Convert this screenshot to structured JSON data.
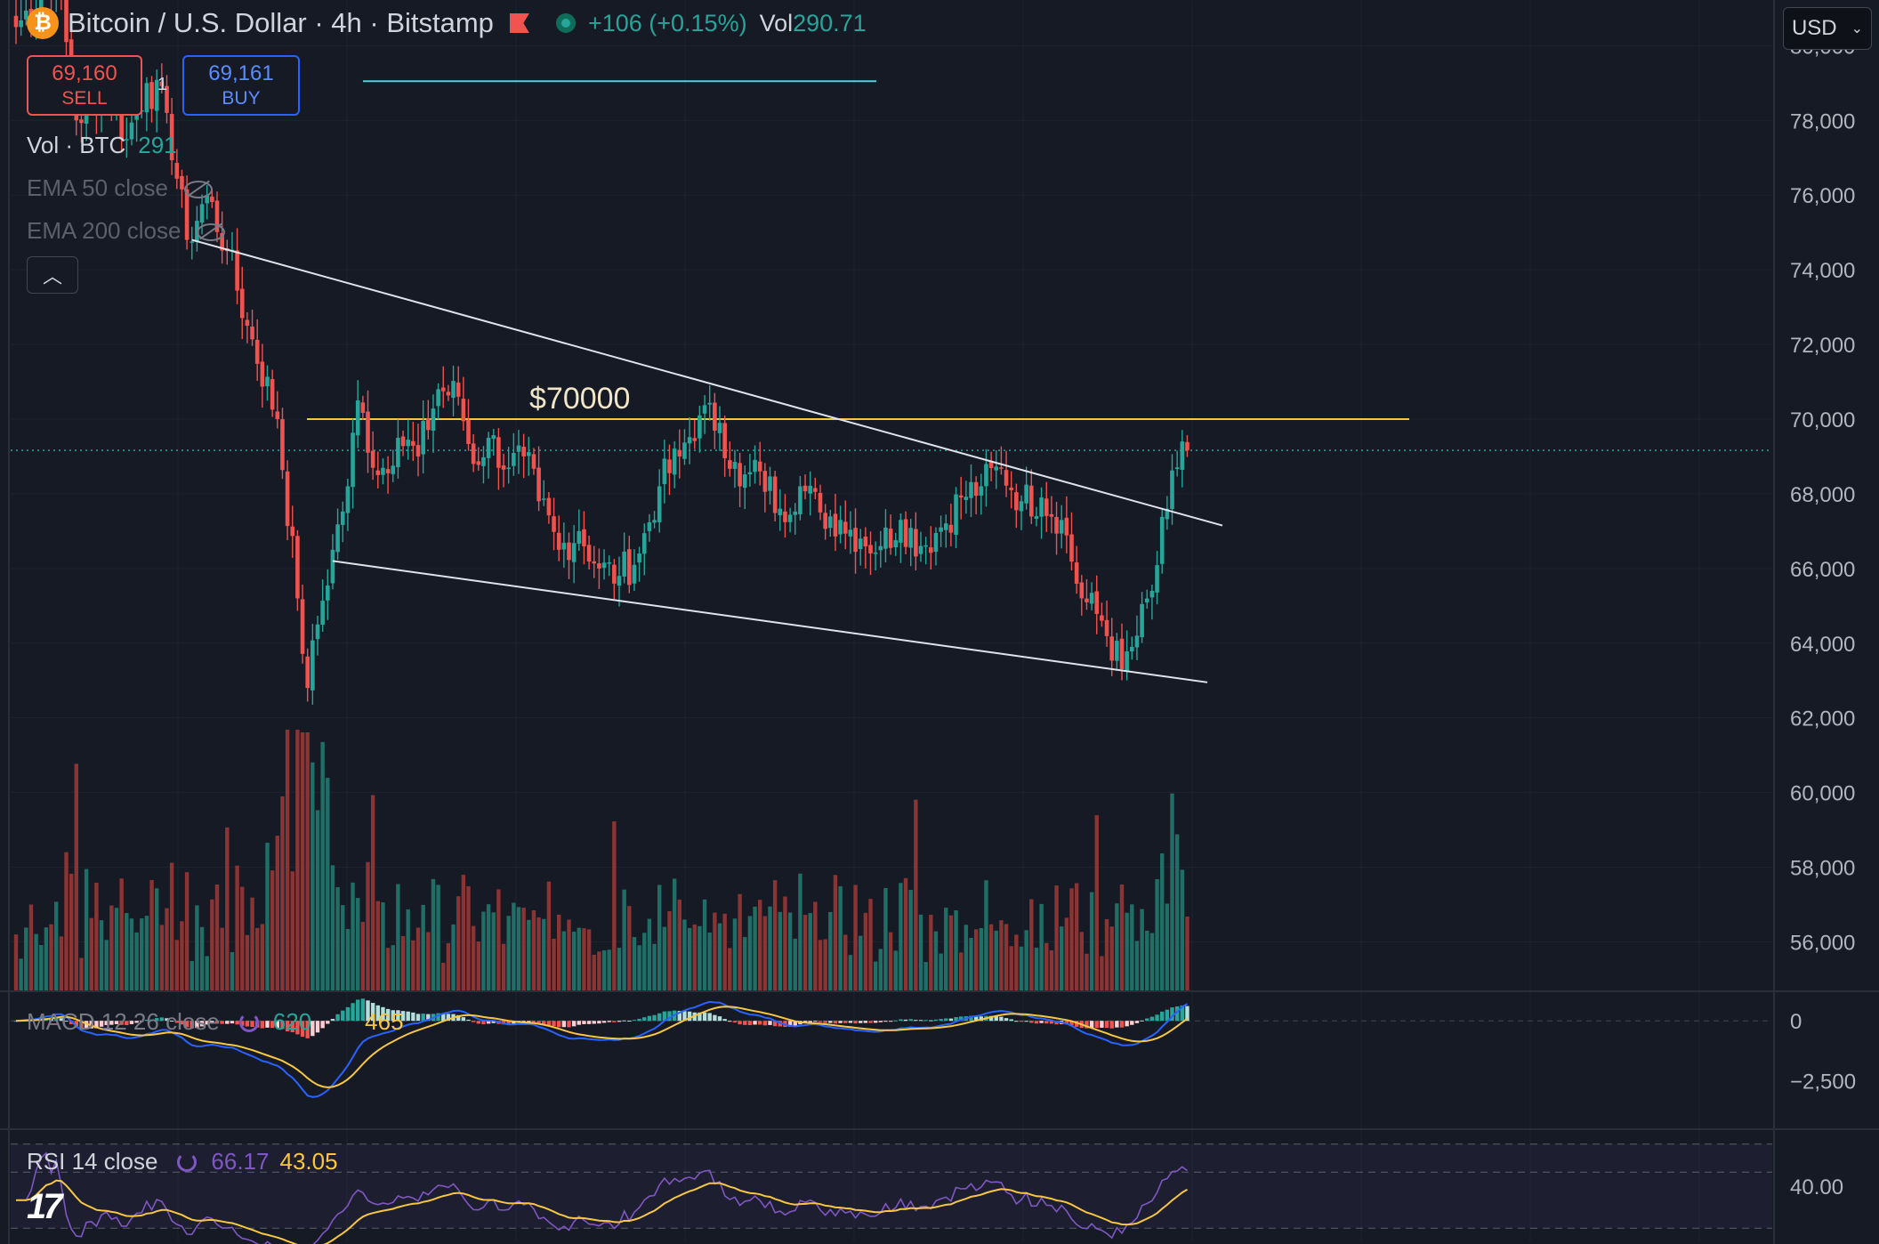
{
  "header": {
    "title": "Bitcoin / U.S. Dollar · 4h · Bitstamp",
    "change": "+106 (+0.15%)",
    "vol_label": "Vol",
    "vol_value": "290.71",
    "currency": "USD"
  },
  "trade": {
    "sell_price": "69,160",
    "sell_label": "SELL",
    "buy_price": "69,161",
    "buy_label": "BUY",
    "quantity": "1"
  },
  "legend": {
    "vol_label": "Vol · BTC",
    "vol_value": "291",
    "ema50": "EMA 50 close",
    "ema200": "EMA 200 close"
  },
  "macd_legend": {
    "label": "MACD 12 26 close",
    "macd_value": "620",
    "signal_value": "465"
  },
  "rsi_legend": {
    "label": "RSI 14 close",
    "rsi_value": "66.17",
    "ma_value": "43.05"
  },
  "colors": {
    "up": "#26a69a",
    "down": "#ef5350",
    "macd": "#2962ff",
    "signal": "#f7c744",
    "rsi": "#7e57c2",
    "hline": "#f7c744",
    "resistance": "#4dd0e1",
    "trend": "#e0e3eb"
  },
  "chart_data": [
    {
      "type": "candlestick",
      "title": "Bitcoin / U.S. Dollar · 4h · Bitstamp",
      "ylim": [
        54700,
        81200
      ],
      "yticks": [
        "80,000",
        "78,000",
        "76,000",
        "74,000",
        "72,000",
        "70,000",
        "68,000",
        "66,000",
        "64,000",
        "62,000",
        "60,000",
        "58,000",
        "56,000"
      ],
      "last_price": 69161,
      "anchors": [
        [
          0,
          80500
        ],
        [
          8,
          82000
        ],
        [
          12,
          78000
        ],
        [
          18,
          79000
        ],
        [
          22,
          77500
        ],
        [
          26,
          79000
        ],
        [
          30,
          78200
        ],
        [
          34,
          74800
        ],
        [
          38,
          76000
        ],
        [
          42,
          74500
        ],
        [
          46,
          72500
        ],
        [
          52,
          70000
        ],
        [
          56,
          65200
        ],
        [
          58,
          62800
        ],
        [
          60,
          64500
        ],
        [
          63,
          66500
        ],
        [
          66,
          68200
        ],
        [
          68,
          70500
        ],
        [
          72,
          68500
        ],
        [
          76,
          69500
        ],
        [
          80,
          69000
        ],
        [
          84,
          70800
        ],
        [
          88,
          70600
        ],
        [
          91,
          68800
        ],
        [
          94,
          69500
        ],
        [
          98,
          68700
        ],
        [
          101,
          69000
        ],
        [
          104,
          67800
        ],
        [
          108,
          66500
        ],
        [
          112,
          67000
        ],
        [
          116,
          66000
        ],
        [
          120,
          65800
        ],
        [
          124,
          66400
        ],
        [
          128,
          68200
        ],
        [
          132,
          69000
        ],
        [
          136,
          70100
        ],
        [
          140,
          69900
        ],
        [
          144,
          68200
        ],
        [
          148,
          68600
        ],
        [
          152,
          67600
        ],
        [
          156,
          68200
        ],
        [
          160,
          67500
        ],
        [
          164,
          67300
        ],
        [
          168,
          66800
        ],
        [
          172,
          66600
        ],
        [
          176,
          67300
        ],
        [
          180,
          66600
        ],
        [
          184,
          67100
        ],
        [
          188,
          67900
        ],
        [
          192,
          68200
        ],
        [
          196,
          68700
        ],
        [
          200,
          67800
        ],
        [
          204,
          67900
        ],
        [
          208,
          67300
        ],
        [
          212,
          65200
        ],
        [
          216,
          64600
        ],
        [
          220,
          63300
        ],
        [
          223,
          64200
        ],
        [
          226,
          65400
        ],
        [
          229,
          67600
        ],
        [
          232,
          69400
        ],
        [
          233,
          69161
        ]
      ],
      "horizontal_lines": [
        {
          "label": "$70000",
          "price": 70000
        },
        {
          "label": "",
          "price": 79050
        }
      ],
      "trendlines": [
        {
          "from": [
            35,
            74800
          ],
          "to": [
            240,
            67150
          ]
        },
        {
          "from": [
            63,
            66200
          ],
          "to": [
            237,
            62950
          ]
        }
      ]
    },
    {
      "type": "bar",
      "title": "Vol · BTC",
      "last_value": 291
    },
    {
      "type": "line",
      "title": "MACD 12 26 close",
      "ylim": [
        -4500,
        1200
      ],
      "yticks": [
        0,
        -2500
      ],
      "ytick_labels": [
        "0",
        "−2,500"
      ],
      "series": [
        {
          "name": "MACD",
          "last": 620
        },
        {
          "name": "Signal",
          "last": 465
        }
      ]
    },
    {
      "type": "line",
      "title": "RSI 14 close",
      "ylim": [
        20,
        60
      ],
      "yticks": [
        40
      ],
      "ytick_labels": [
        "40.00"
      ],
      "series": [
        {
          "name": "RSI",
          "last": 66.17
        },
        {
          "name": "RSI MA",
          "last": 43.05
        }
      ]
    }
  ]
}
